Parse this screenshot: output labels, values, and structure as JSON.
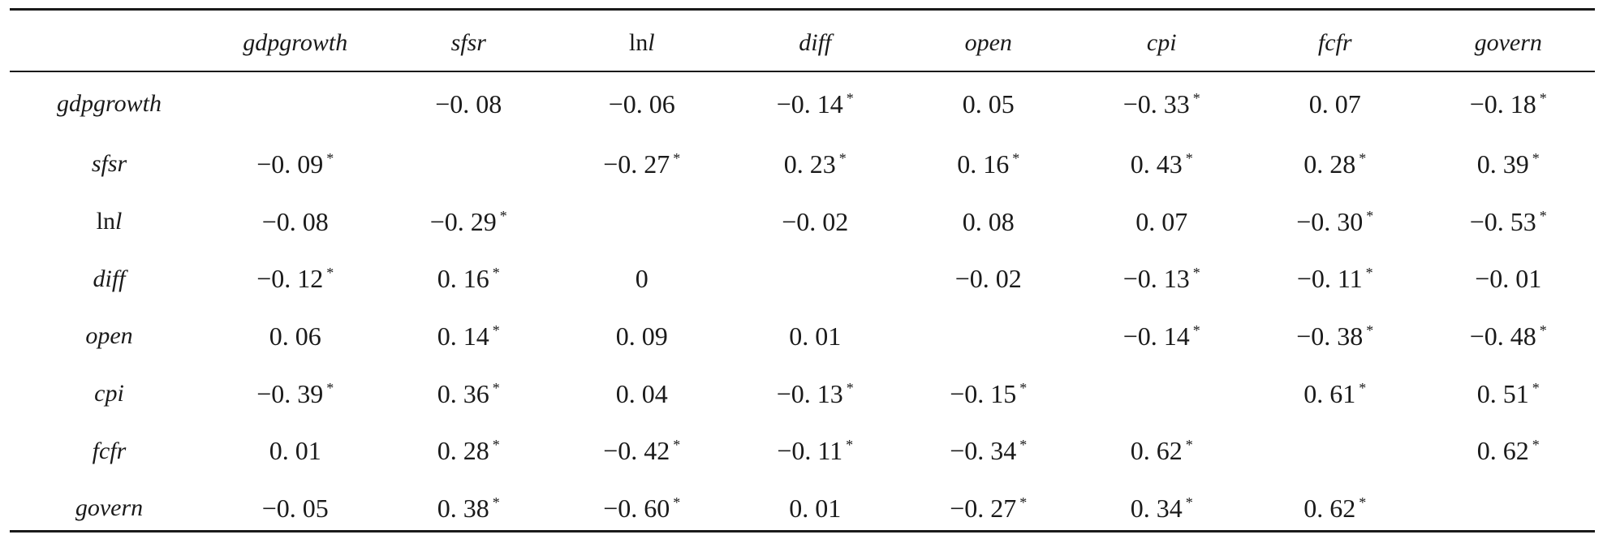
{
  "table": {
    "columns": [
      "",
      "gdpgrowth",
      "sfsr",
      "lnl",
      "diff",
      "open",
      "cpi",
      "fcfr",
      "govern"
    ],
    "rows": [
      {
        "label": "gdpgrowth",
        "cells": [
          {
            "value": "",
            "sig": ""
          },
          {
            "value": "−0. 08",
            "sig": ""
          },
          {
            "value": "−0. 06",
            "sig": ""
          },
          {
            "value": "−0. 14",
            "sig": "*"
          },
          {
            "value": "0. 05",
            "sig": ""
          },
          {
            "value": "−0. 33",
            "sig": "*"
          },
          {
            "value": "0. 07",
            "sig": ""
          },
          {
            "value": "−0. 18",
            "sig": "*"
          }
        ]
      },
      {
        "label": "sfsr",
        "cells": [
          {
            "value": "−0. 09",
            "sig": "*"
          },
          {
            "value": "",
            "sig": ""
          },
          {
            "value": "−0. 27",
            "sig": "*"
          },
          {
            "value": "0. 23",
            "sig": "*"
          },
          {
            "value": "0. 16",
            "sig": "*"
          },
          {
            "value": "0. 43",
            "sig": "*"
          },
          {
            "value": "0. 28",
            "sig": "*"
          },
          {
            "value": "0. 39",
            "sig": "*"
          }
        ]
      },
      {
        "label": "lnl",
        "cells": [
          {
            "value": "−0. 08",
            "sig": ""
          },
          {
            "value": "−0. 29",
            "sig": "*"
          },
          {
            "value": "",
            "sig": ""
          },
          {
            "value": "−0. 02",
            "sig": ""
          },
          {
            "value": "0. 08",
            "sig": ""
          },
          {
            "value": "0. 07",
            "sig": ""
          },
          {
            "value": "−0. 30",
            "sig": "*"
          },
          {
            "value": "−0. 53",
            "sig": "*"
          }
        ]
      },
      {
        "label": "diff",
        "cells": [
          {
            "value": "−0. 12",
            "sig": "*"
          },
          {
            "value": "0. 16",
            "sig": "*"
          },
          {
            "value": "0",
            "sig": ""
          },
          {
            "value": "",
            "sig": ""
          },
          {
            "value": "−0. 02",
            "sig": ""
          },
          {
            "value": "−0. 13",
            "sig": "*"
          },
          {
            "value": "−0. 11",
            "sig": "*"
          },
          {
            "value": "−0. 01",
            "sig": ""
          }
        ]
      },
      {
        "label": "open",
        "cells": [
          {
            "value": "0. 06",
            "sig": ""
          },
          {
            "value": "0. 14",
            "sig": "*"
          },
          {
            "value": "0. 09",
            "sig": ""
          },
          {
            "value": "0. 01",
            "sig": ""
          },
          {
            "value": "",
            "sig": ""
          },
          {
            "value": "−0. 14",
            "sig": "*"
          },
          {
            "value": "−0. 38",
            "sig": "*"
          },
          {
            "value": "−0. 48",
            "sig": "*"
          }
        ]
      },
      {
        "label": "cpi",
        "cells": [
          {
            "value": "−0. 39",
            "sig": "*"
          },
          {
            "value": "0. 36",
            "sig": "*"
          },
          {
            "value": "0. 04",
            "sig": ""
          },
          {
            "value": "−0. 13",
            "sig": "*"
          },
          {
            "value": "−0. 15",
            "sig": "*"
          },
          {
            "value": "",
            "sig": ""
          },
          {
            "value": "0. 61",
            "sig": "*"
          },
          {
            "value": "0. 51",
            "sig": "*"
          }
        ]
      },
      {
        "label": "fcfr",
        "cells": [
          {
            "value": "0. 01",
            "sig": ""
          },
          {
            "value": "0. 28",
            "sig": "*"
          },
          {
            "value": "−0. 42",
            "sig": "*"
          },
          {
            "value": "−0. 11",
            "sig": "*"
          },
          {
            "value": "−0. 34",
            "sig": "*"
          },
          {
            "value": "0. 62",
            "sig": "*"
          },
          {
            "value": "",
            "sig": ""
          },
          {
            "value": "0. 62",
            "sig": "*"
          }
        ]
      },
      {
        "label": "govern",
        "cells": [
          {
            "value": "−0. 05",
            "sig": ""
          },
          {
            "value": "0. 38",
            "sig": "*"
          },
          {
            "value": "−0. 60",
            "sig": "*"
          },
          {
            "value": "0. 01",
            "sig": ""
          },
          {
            "value": "−0. 27",
            "sig": "*"
          },
          {
            "value": "0. 34",
            "sig": "*"
          },
          {
            "value": "0. 62",
            "sig": "*"
          },
          {
            "value": "",
            "sig": ""
          }
        ]
      }
    ]
  }
}
